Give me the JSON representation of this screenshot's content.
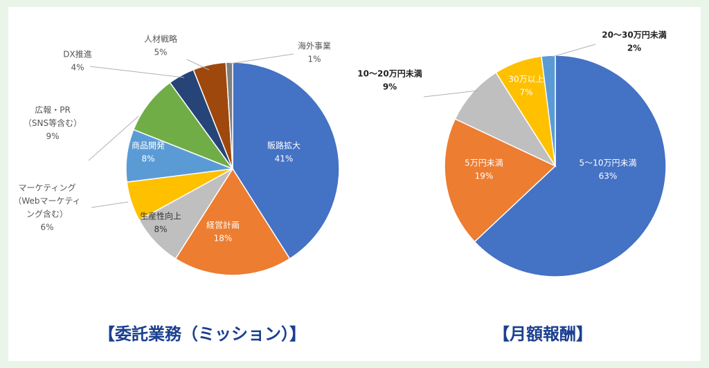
{
  "chart_data": [
    {
      "type": "pie",
      "title": "【委託業務（ミッション）】",
      "slices": [
        {
          "label": [
            "販路拡大"
          ],
          "pct_text": "41%",
          "value": 41,
          "color": "#4472c4"
        },
        {
          "label": [
            "経営計画"
          ],
          "pct_text": "18%",
          "value": 18,
          "color": "#ed7d31"
        },
        {
          "label": [
            "生産性向上"
          ],
          "pct_text": "8%",
          "value": 8,
          "color": "#bfbfbf"
        },
        {
          "label": [
            "マーケティング",
            "（Webマーケティ",
            "ング含む）"
          ],
          "pct_text": "6%",
          "value": 6,
          "color": "#ffc000"
        },
        {
          "label": [
            "商品開発"
          ],
          "pct_text": "8%",
          "value": 8,
          "color": "#5b9bd5"
        },
        {
          "label": [
            "広報・PR",
            "（SNS等含む）"
          ],
          "pct_text": "9%",
          "value": 9,
          "color": "#70ad47"
        },
        {
          "label": [
            "DX推進"
          ],
          "pct_text": "4%",
          "value": 4,
          "color": "#264478"
        },
        {
          "label": [
            "人材戦略"
          ],
          "pct_text": "5%",
          "value": 5,
          "color": "#9e480e"
        },
        {
          "label": [
            "海外事業"
          ],
          "pct_text": "1%",
          "value": 1,
          "color": "#7f7f7f"
        }
      ]
    },
    {
      "type": "pie",
      "title": "【月額報酬】",
      "slices": [
        {
          "label": [
            "5～10万円未満"
          ],
          "pct_text": "63%",
          "value": 63,
          "color": "#4472c4"
        },
        {
          "label": [
            "5万円未満"
          ],
          "pct_text": "19%",
          "value": 19,
          "color": "#ed7d31"
        },
        {
          "label": [
            "10～20万円未満"
          ],
          "pct_text": "9%",
          "value": 9,
          "color": "#bfbfbf"
        },
        {
          "label": [
            "30万以上"
          ],
          "pct_text": "7%",
          "value": 7,
          "color": "#ffc000"
        },
        {
          "label": [
            "20～30万円未満"
          ],
          "pct_text": "2%",
          "value": 2,
          "color": "#5b9bd5"
        }
      ]
    }
  ]
}
